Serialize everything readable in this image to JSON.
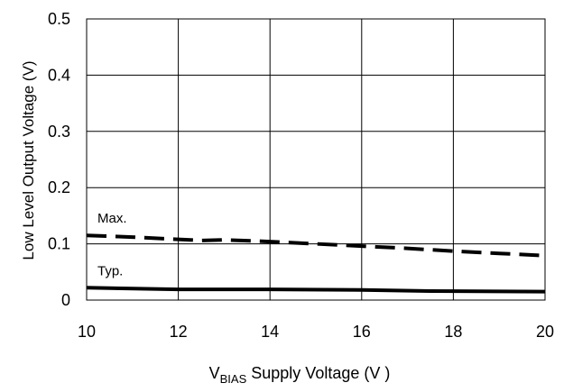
{
  "chart_data": {
    "type": "line",
    "title": "",
    "xlabel_main": "V",
    "xlabel_sub": "BIAS",
    "xlabel_rest": " Supply Voltage (V )",
    "ylabel": "Low Level Output Voltage (V)",
    "xlim": [
      10,
      20
    ],
    "ylim": [
      0,
      0.5
    ],
    "x_ticks": [
      "10",
      "12",
      "14",
      "16",
      "18",
      "20"
    ],
    "y_ticks": [
      "0",
      "0.1",
      "0.2",
      "0.3",
      "0.4",
      "0.5"
    ],
    "grid": true,
    "series": [
      {
        "name": "Max.",
        "style": "dashed",
        "x": [
          10,
          11,
          12,
          12.5,
          13,
          14,
          15,
          16,
          17,
          18,
          19,
          20
        ],
        "y": [
          0.115,
          0.112,
          0.108,
          0.106,
          0.107,
          0.104,
          0.1,
          0.096,
          0.092,
          0.087,
          0.083,
          0.079
        ]
      },
      {
        "name": "Typ.",
        "style": "solid",
        "x": [
          10,
          12,
          14,
          16,
          17.5,
          20
        ],
        "y": [
          0.022,
          0.019,
          0.019,
          0.018,
          0.016,
          0.015
        ]
      }
    ],
    "line_color": "#000000",
    "grid_color": "#000000"
  }
}
